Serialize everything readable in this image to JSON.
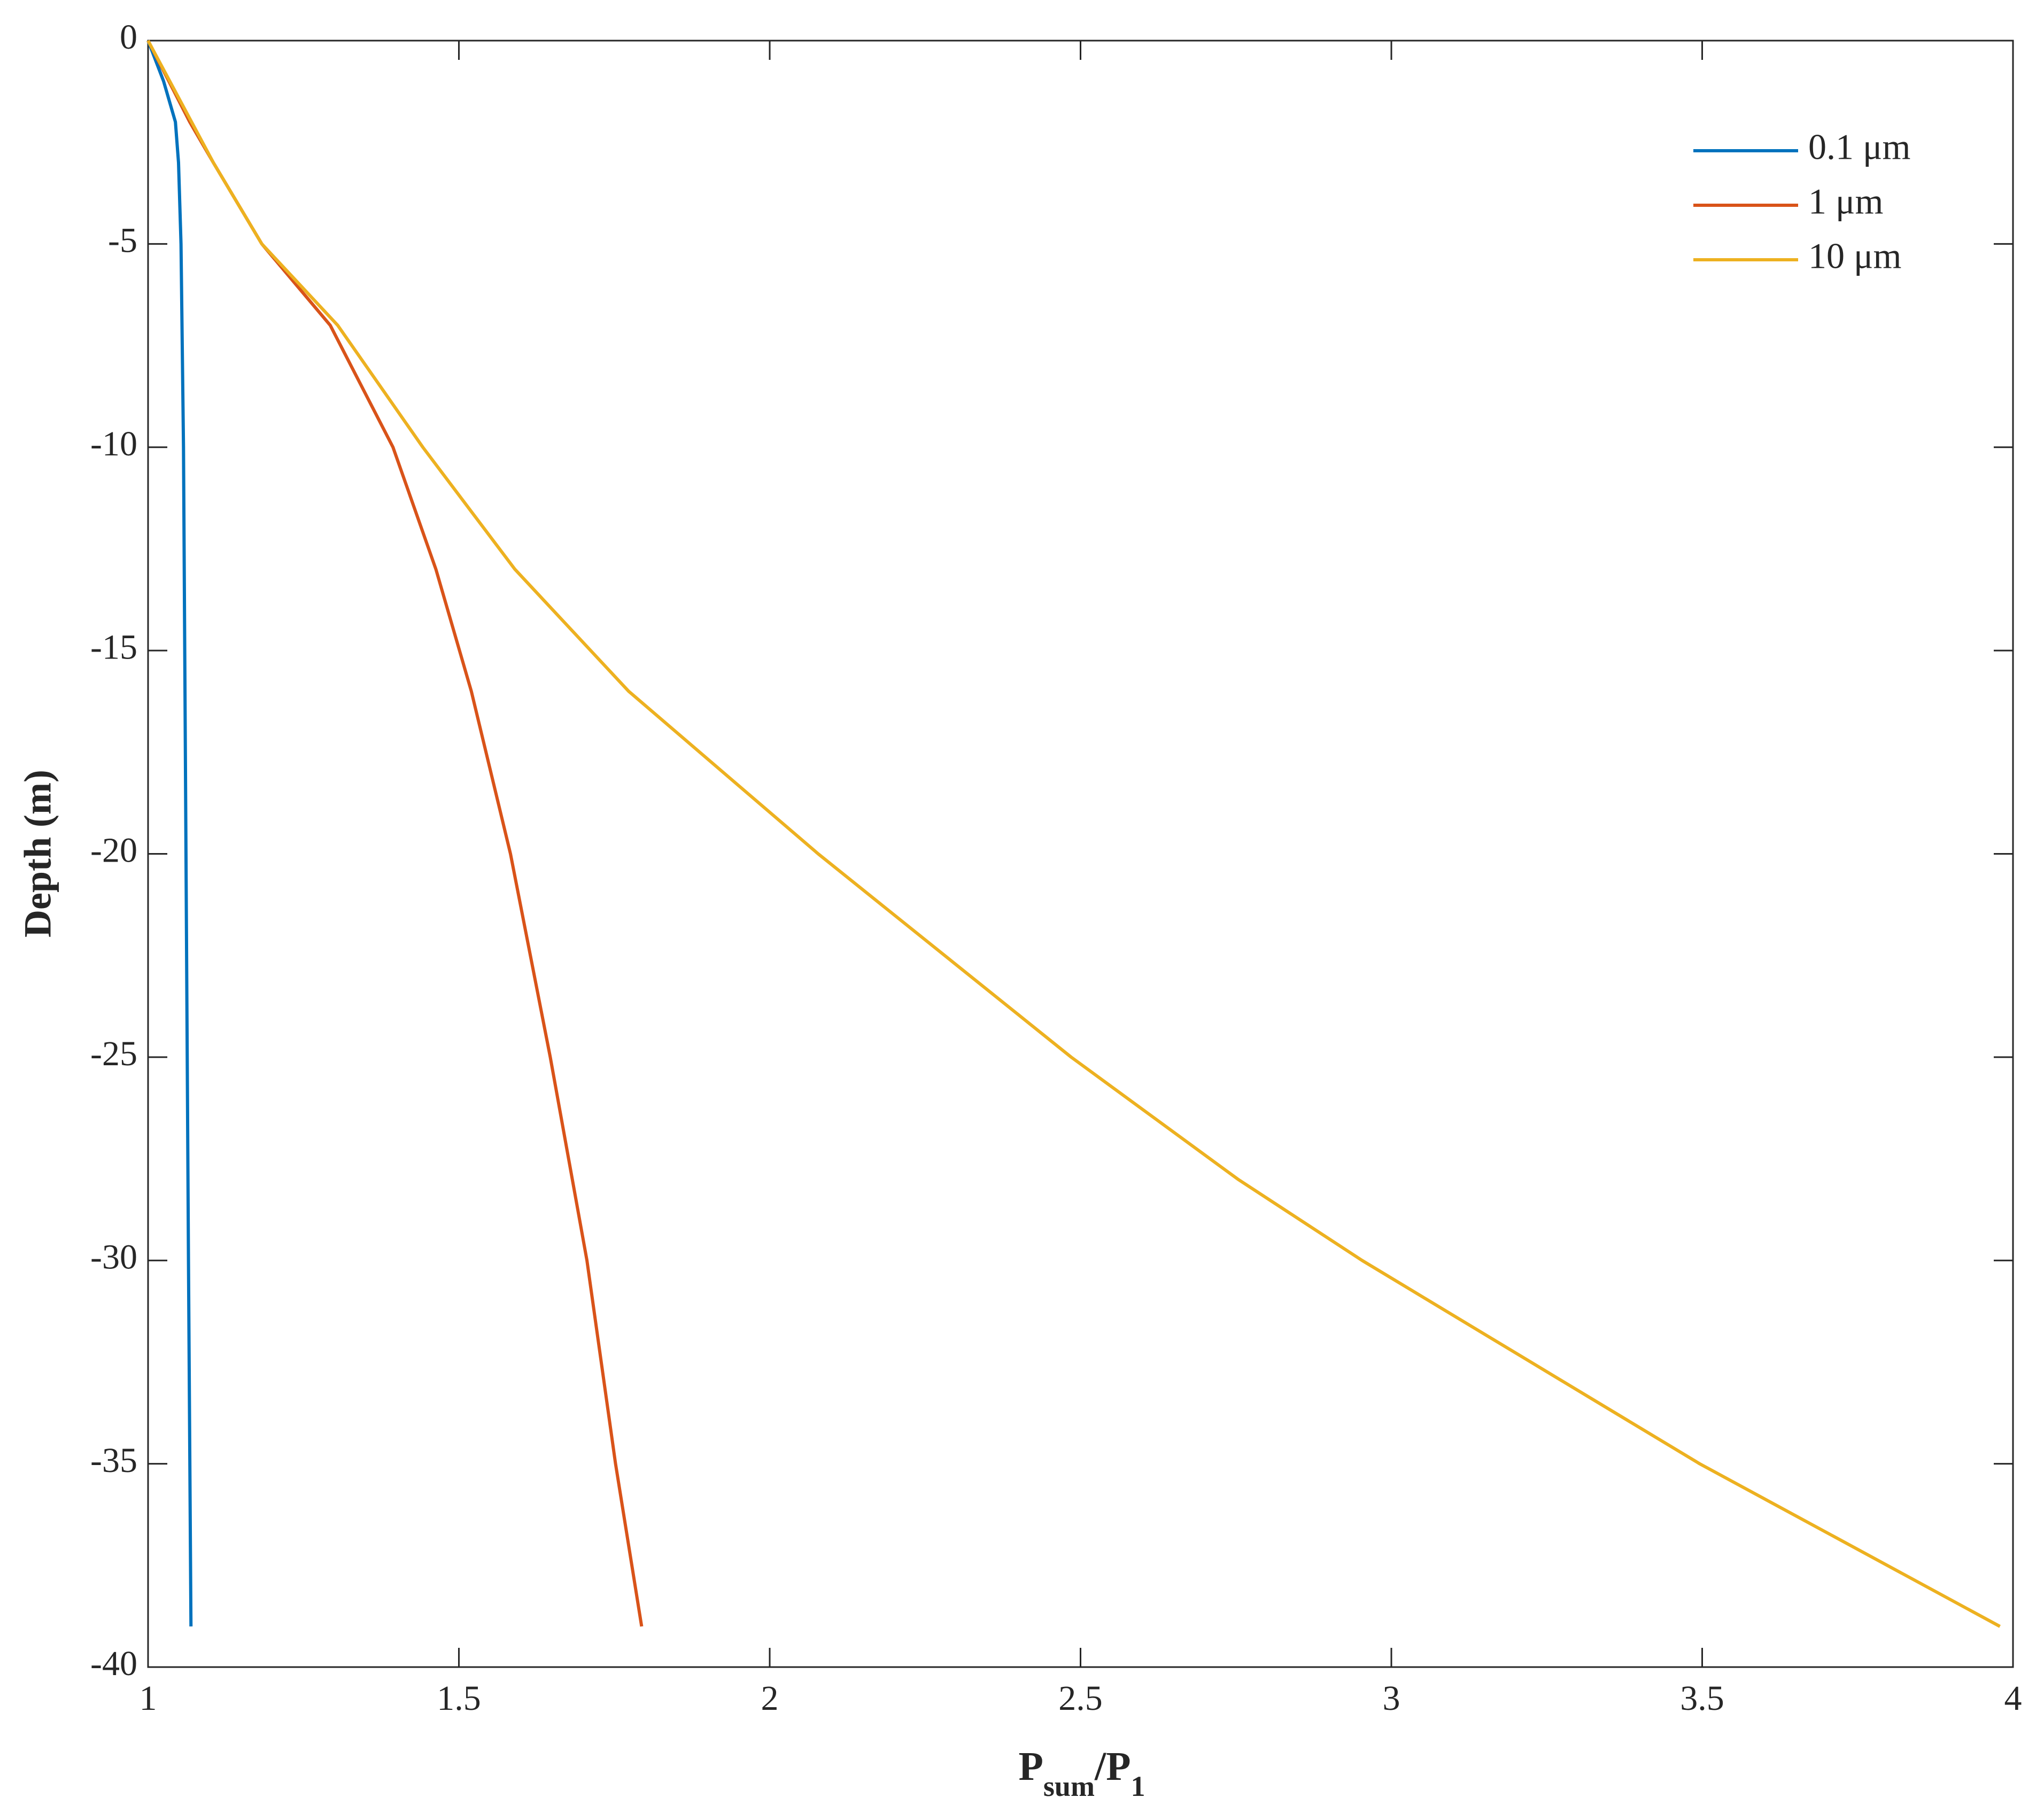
{
  "chart_data": {
    "type": "line",
    "xlabel_parts": [
      "P",
      "sum",
      "/P",
      "1"
    ],
    "ylabel": "Depth (m)",
    "xlim": [
      1,
      4
    ],
    "xticks": [
      1,
      1.5,
      2,
      2.5,
      3,
      3.5,
      4
    ],
    "ylim": [
      -40,
      0
    ],
    "yticks": [
      0,
      -5,
      -10,
      -15,
      -20,
      -25,
      -30,
      -35,
      -40
    ],
    "grid": false,
    "legend": "upper right",
    "series": [
      {
        "name": "0.1 μm",
        "color": "#0072bd",
        "x": [
          1,
          1.025,
          1.044,
          1.049,
          1.053,
          1.057,
          1.061,
          1.065,
          1.069
        ],
        "values": [
          0,
          -1,
          -2,
          -3,
          -5,
          -10,
          -20,
          -30,
          -39
        ]
      },
      {
        "name": "1 μm",
        "color": "#d95319",
        "x": [
          1,
          1.067,
          1.105,
          1.183,
          1.293,
          1.394,
          1.463,
          1.52,
          1.583,
          1.647,
          1.706,
          1.752,
          1.794
        ],
        "values": [
          0,
          -2,
          -3,
          -5,
          -7,
          -10,
          -13,
          -16,
          -20,
          -25,
          -30,
          -35,
          -39
        ]
      },
      {
        "name": "10 μm",
        "color": "#edb120",
        "x": [
          1,
          1.07,
          1.105,
          1.183,
          1.305,
          1.442,
          1.59,
          1.773,
          2.078,
          2.485,
          2.753,
          2.953,
          3.496,
          3.979
        ],
        "values": [
          0,
          -2,
          -3,
          -5,
          -7,
          -10,
          -13,
          -16,
          -20,
          -25,
          -28,
          -30,
          -35,
          -39
        ]
      }
    ]
  }
}
